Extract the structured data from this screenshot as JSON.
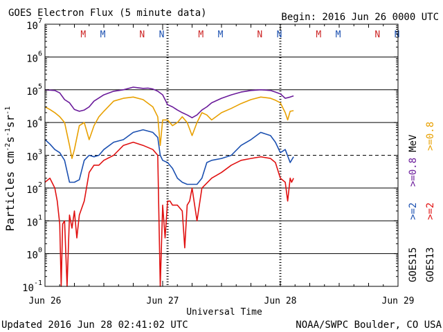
{
  "header": {
    "title": "GOES Electron Flux (5 minute data)",
    "begin": "Begin: 2016 Jun 26 0000 UTC"
  },
  "footer": {
    "updated": "Updated 2016 Jun 28 02:41:02 UTC",
    "credit": "NOAA/SWPC Boulder, CO USA"
  },
  "chart_data": {
    "type": "line",
    "title": "GOES Electron Flux (5 minute data)",
    "xlabel": "Universal Time",
    "ylabel": "Particles cm⁻²s⁻¹sr⁻¹",
    "ylabel_parts": {
      "main": "Particles cm",
      "exp1": "-2",
      "s": "s",
      "exp2": "-1",
      "sr": "sr",
      "exp3": "-1"
    },
    "yscale": "log",
    "ylim": [
      0.1,
      10000000
    ],
    "xlim": [
      0,
      72
    ],
    "x_unit": "hours since 2016 Jun 26 0000 UTC",
    "x_ticks": [
      {
        "x": 0,
        "label": "Jun 26"
      },
      {
        "x": 24,
        "label": "Jun 27"
      },
      {
        "x": 48,
        "label": "Jun 28"
      },
      {
        "x": 72,
        "label": "Jun 29"
      }
    ],
    "y_ticks": [
      {
        "value": 0.1,
        "base": "10",
        "exp": "-1"
      },
      {
        "value": 1,
        "base": "10",
        "exp": "0"
      },
      {
        "value": 10,
        "base": "10",
        "exp": "1"
      },
      {
        "value": 100,
        "base": "10",
        "exp": "2"
      },
      {
        "value": 1000,
        "base": "10",
        "exp": "3"
      },
      {
        "value": 10000,
        "base": "10",
        "exp": "4"
      },
      {
        "value": 100000,
        "base": "10",
        "exp": "5"
      },
      {
        "value": 1000000,
        "base": "10",
        "exp": "6"
      },
      {
        "value": 10000000,
        "base": "10",
        "exp": "7"
      }
    ],
    "threshold": 1000,
    "grid": true,
    "markers": [
      {
        "x": 7.8,
        "label": "M",
        "color": "#cc2222"
      },
      {
        "x": 11.8,
        "label": "M",
        "color": "#1a4fb0"
      },
      {
        "x": 19.8,
        "label": "N",
        "color": "#cc2222"
      },
      {
        "x": 23.8,
        "label": "N",
        "color": "#1a4fb0"
      },
      {
        "x": 31.8,
        "label": "M",
        "color": "#cc2222"
      },
      {
        "x": 35.8,
        "label": "M",
        "color": "#1a4fb0"
      },
      {
        "x": 43.8,
        "label": "N",
        "color": "#cc2222"
      },
      {
        "x": 47.8,
        "label": "N",
        "color": "#1a4fb0"
      },
      {
        "x": 55.8,
        "label": "M",
        "color": "#cc2222"
      },
      {
        "x": 59.8,
        "label": "M",
        "color": "#1a4fb0"
      },
      {
        "x": 67.8,
        "label": "N",
        "color": "#cc2222"
      },
      {
        "x": 71.8,
        "label": "N",
        "color": "#1a4fb0"
      }
    ],
    "local_noon_lines": [
      25,
      48
    ],
    "legend": [
      {
        "satellite": "GOES15",
        "label": ">=0.8 MeV",
        "parts": [
          ">=0.8",
          "MeV"
        ],
        "color": "#6a1a9a"
      },
      {
        "satellite": "GOES15",
        "label": ">=2",
        "color": "#1a4fb0"
      },
      {
        "satellite": "GOES13",
        "label": ">=0.8",
        "color": "#e8a000"
      },
      {
        "satellite": "GOES13",
        "label": ">=2",
        "color": "#e01010"
      }
    ],
    "series": [
      {
        "name": "GOES15 >=0.8 MeV",
        "color": "#6a1a9a",
        "x": [
          0,
          2,
          3,
          4,
          5,
          6,
          7,
          8,
          9,
          10,
          12,
          14,
          16,
          18,
          19,
          20,
          21,
          22,
          23,
          24,
          25,
          26,
          27,
          28,
          29,
          30,
          31,
          32,
          33,
          34,
          36,
          38,
          40,
          42,
          44,
          46,
          47,
          48,
          49,
          50,
          50.7
        ],
        "values": [
          100000,
          95000,
          80000,
          50000,
          40000,
          25000,
          22000,
          24000,
          30000,
          45000,
          70000,
          90000,
          100000,
          120000,
          115000,
          110000,
          112000,
          105000,
          90000,
          70000,
          35000,
          30000,
          24000,
          20000,
          17000,
          14000,
          17000,
          24000,
          30000,
          40000,
          55000,
          70000,
          85000,
          95000,
          100000,
          95000,
          85000,
          75000,
          55000,
          60000,
          65000
        ]
      },
      {
        "name": "GOES13 >=0.8 MeV",
        "color": "#e8a000",
        "x": [
          0,
          1,
          2,
          3,
          4,
          5,
          5.5,
          6,
          7,
          8,
          9,
          10,
          11,
          12,
          14,
          16,
          18,
          20,
          22,
          23,
          23.5,
          24,
          25,
          26,
          27,
          28,
          29,
          30,
          31,
          32,
          33,
          34,
          36,
          38,
          40,
          42,
          44,
          46,
          47,
          48,
          49,
          49.5,
          50,
          50.7
        ],
        "values": [
          30000,
          25000,
          20000,
          15000,
          10000,
          2000,
          800,
          1500,
          8000,
          10000,
          3000,
          8000,
          15000,
          22000,
          45000,
          55000,
          60000,
          50000,
          30000,
          15000,
          2000,
          12000,
          12000,
          8000,
          10000,
          15000,
          10000,
          4000,
          10000,
          20000,
          17000,
          12000,
          20000,
          27000,
          38000,
          50000,
          60000,
          55000,
          48000,
          40000,
          20000,
          12000,
          22000,
          23000
        ]
      },
      {
        "name": "GOES15 >=2 MeV",
        "color": "#1a4fb0",
        "x": [
          0,
          1,
          2,
          3,
          4,
          5,
          6,
          7,
          8,
          9,
          10,
          11,
          12,
          14,
          16,
          18,
          20,
          22,
          23,
          23.5,
          24,
          25,
          26,
          27,
          28,
          29,
          30,
          31,
          32,
          33,
          34,
          36,
          38,
          40,
          42,
          44,
          46,
          47,
          48,
          49,
          50,
          50.7
        ],
        "values": [
          3000,
          2200,
          1500,
          1200,
          700,
          150,
          150,
          180,
          700,
          1000,
          900,
          1000,
          1500,
          2500,
          3000,
          5000,
          6000,
          5000,
          3500,
          1000,
          700,
          600,
          400,
          200,
          150,
          130,
          130,
          130,
          200,
          600,
          700,
          800,
          1000,
          2000,
          3000,
          5000,
          4000,
          2500,
          1200,
          1500,
          600,
          900
        ]
      },
      {
        "name": "GOES13 >=2 MeV",
        "color": "#e01010",
        "x": [
          0,
          1,
          2,
          2.5,
          3,
          3.3,
          3.6,
          4,
          4.5,
          5,
          5.5,
          6,
          6.5,
          7,
          8,
          9,
          10,
          11,
          12,
          14,
          16,
          18,
          20,
          22,
          23,
          23.5,
          24,
          24.5,
          25,
          25.5,
          26,
          27,
          28,
          28.5,
          29,
          29.5,
          30,
          31,
          32,
          34,
          36,
          38,
          40,
          42,
          44,
          46,
          47,
          48,
          49,
          49.5,
          50,
          50.3,
          50.7
        ],
        "values": [
          150,
          200,
          100,
          40,
          8,
          0.1,
          8,
          10,
          0.1,
          15,
          6,
          20,
          3,
          15,
          40,
          300,
          500,
          500,
          700,
          1000,
          2000,
          2500,
          2000,
          1500,
          1000,
          0.1,
          30,
          3,
          40,
          40,
          30,
          30,
          20,
          1.5,
          30,
          40,
          100,
          10,
          100,
          200,
          300,
          500,
          700,
          800,
          900,
          800,
          600,
          200,
          150,
          40,
          200,
          150,
          200
        ]
      }
    ]
  }
}
